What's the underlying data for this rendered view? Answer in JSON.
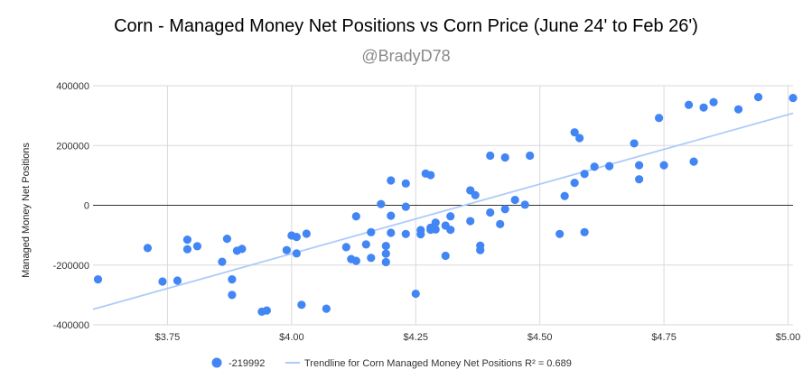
{
  "chart_data": {
    "type": "scatter",
    "title": "Corn - Managed Money Net Positions vs Corn Price (June 24' to Feb 26')",
    "subtitle": "@BradyD78",
    "xlabel": "",
    "ylabel": "Managed Money Net Positions",
    "xlim": [
      3.6,
      5.01
    ],
    "ylim": [
      -400000,
      400000
    ],
    "xticks": [
      3.75,
      4.0,
      4.25,
      4.5,
      4.75,
      5.0
    ],
    "xtick_labels": [
      "$3.75",
      "$4.00",
      "$4.25",
      "$4.50",
      "$4.75",
      "$5.00"
    ],
    "yticks": [
      400000,
      200000,
      0,
      -200000,
      -400000
    ],
    "ytick_labels": [
      "400000",
      "200000",
      "0",
      "-200000",
      "-400000"
    ],
    "series": [
      {
        "name": "-219992",
        "color": "#4285f4",
        "points": [
          [
            3.61,
            -248000
          ],
          [
            3.71,
            -143000
          ],
          [
            3.74,
            -255000
          ],
          [
            3.77,
            -252000
          ],
          [
            3.79,
            -115000
          ],
          [
            3.79,
            -147000
          ],
          [
            3.81,
            -137000
          ],
          [
            3.86,
            -189000
          ],
          [
            3.87,
            -112000
          ],
          [
            3.88,
            -248000
          ],
          [
            3.88,
            -300000
          ],
          [
            3.89,
            -152000
          ],
          [
            3.9,
            -146000
          ],
          [
            3.94,
            -356000
          ],
          [
            3.95,
            -352000
          ],
          [
            3.99,
            -150000
          ],
          [
            4.0,
            -101000
          ],
          [
            4.01,
            -106000
          ],
          [
            4.01,
            -161000
          ],
          [
            4.02,
            -333000
          ],
          [
            4.03,
            -95000
          ],
          [
            4.07,
            -346000
          ],
          [
            4.11,
            -140000
          ],
          [
            4.12,
            -180000
          ],
          [
            4.13,
            -37000
          ],
          [
            4.13,
            -186000
          ],
          [
            4.15,
            -131000
          ],
          [
            4.16,
            -90000
          ],
          [
            4.16,
            -176000
          ],
          [
            4.18,
            4000
          ],
          [
            4.19,
            -136000
          ],
          [
            4.19,
            -162000
          ],
          [
            4.19,
            -190000
          ],
          [
            4.2,
            83000
          ],
          [
            4.2,
            -35000
          ],
          [
            4.2,
            -92000
          ],
          [
            4.23,
            73000
          ],
          [
            4.23,
            -5000
          ],
          [
            4.23,
            -96000
          ],
          [
            4.25,
            -296000
          ],
          [
            4.26,
            -83000
          ],
          [
            4.26,
            -97000
          ],
          [
            4.27,
            106000
          ],
          [
            4.28,
            101000
          ],
          [
            4.28,
            -75000
          ],
          [
            4.28,
            -82000
          ],
          [
            4.29,
            -81000
          ],
          [
            4.29,
            -58000
          ],
          [
            4.31,
            -68000
          ],
          [
            4.31,
            -169000
          ],
          [
            4.32,
            -37000
          ],
          [
            4.32,
            -82000
          ],
          [
            4.36,
            50000
          ],
          [
            4.36,
            -53000
          ],
          [
            4.37,
            34000
          ],
          [
            4.38,
            -135000
          ],
          [
            4.38,
            -150000
          ],
          [
            4.4,
            166000
          ],
          [
            4.4,
            -24000
          ],
          [
            4.42,
            -63000
          ],
          [
            4.43,
            160000
          ],
          [
            4.43,
            -13000
          ],
          [
            4.45,
            18000
          ],
          [
            4.47,
            2000
          ],
          [
            4.48,
            166000
          ],
          [
            4.54,
            -96000
          ],
          [
            4.55,
            31000
          ],
          [
            4.57,
            244000
          ],
          [
            4.57,
            75000
          ],
          [
            4.58,
            225000
          ],
          [
            4.59,
            105000
          ],
          [
            4.59,
            -90000
          ],
          [
            4.61,
            129000
          ],
          [
            4.64,
            131000
          ],
          [
            4.69,
            207000
          ],
          [
            4.7,
            134000
          ],
          [
            4.7,
            87000
          ],
          [
            4.74,
            292000
          ],
          [
            4.75,
            134000
          ],
          [
            4.8,
            336000
          ],
          [
            4.81,
            146000
          ],
          [
            4.83,
            327000
          ],
          [
            4.85,
            345000
          ],
          [
            4.9,
            321000
          ],
          [
            4.94,
            362000
          ],
          [
            5.01,
            359000
          ]
        ]
      }
    ],
    "trendline": {
      "name": "Trendline for Corn Managed Money Net Positions R² = 0.689",
      "color": "#aecbfa",
      "start": [
        3.6,
        -348000
      ],
      "end": [
        5.01,
        308000
      ]
    },
    "grid": true,
    "legend_position": "bottom"
  }
}
